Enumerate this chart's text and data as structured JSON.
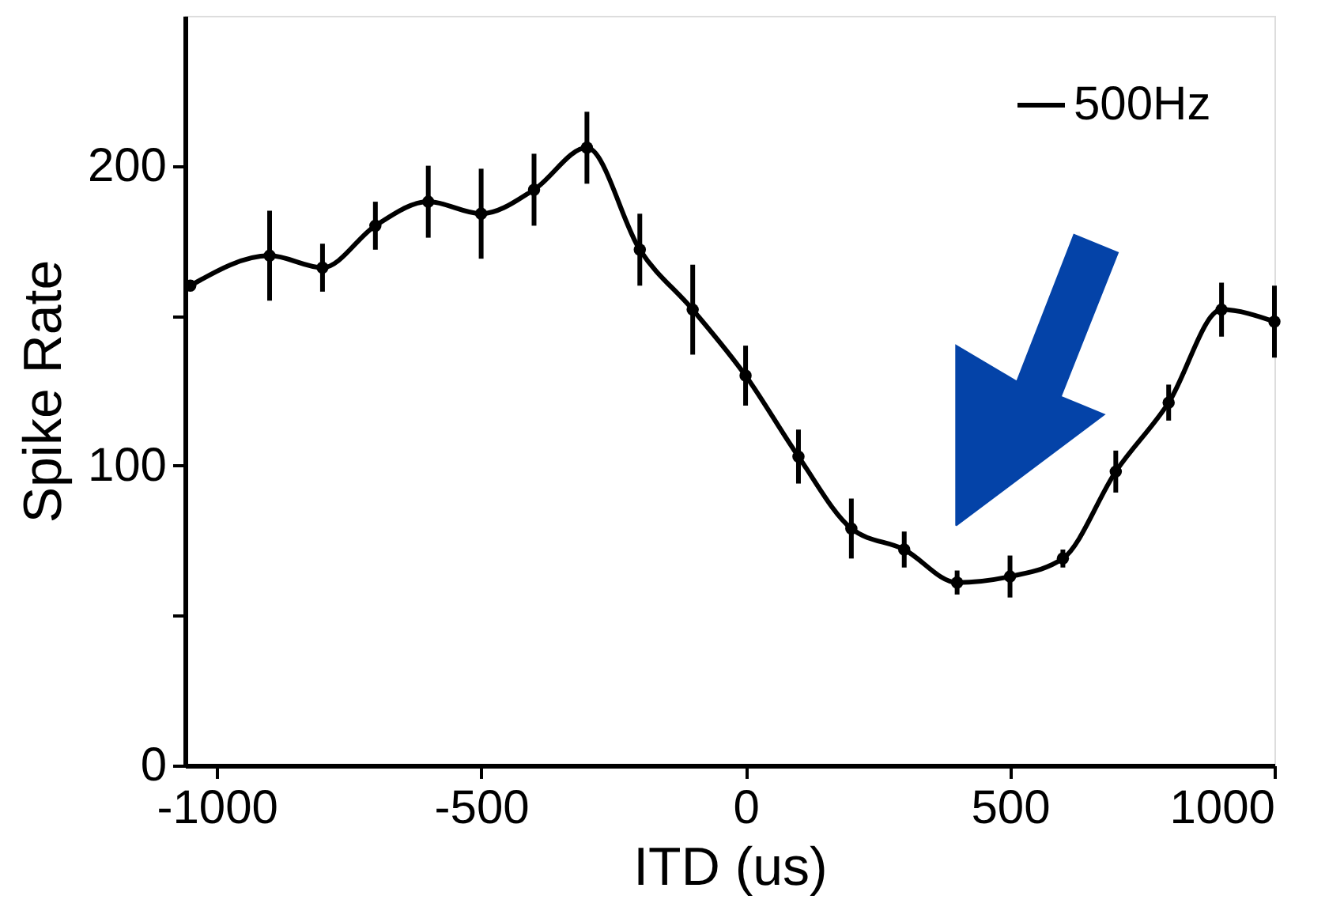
{
  "chart_data": {
    "type": "line",
    "xlabel": "ITD (us)",
    "ylabel": "Spike Rate",
    "x": [
      -1050,
      -900,
      -800,
      -700,
      -600,
      -500,
      -400,
      -300,
      -200,
      -100,
      0,
      100,
      200,
      300,
      400,
      500,
      600,
      700,
      800,
      900,
      1000
    ],
    "series": [
      {
        "name": "500Hz",
        "color": "#000000",
        "values": [
          160,
          170,
          166,
          180,
          188,
          184,
          192,
          206,
          172,
          152,
          130,
          103,
          79,
          72,
          61,
          63,
          69,
          98,
          121,
          152,
          148
        ],
        "errors": [
          null,
          15,
          8,
          8,
          12,
          15,
          12,
          12,
          12,
          15,
          10,
          9,
          10,
          6,
          4,
          7,
          3,
          7,
          6,
          9,
          12
        ]
      }
    ],
    "xlim": [
      -1060,
      1000
    ],
    "xticks": [
      -1000,
      -500,
      0,
      500,
      1000
    ],
    "ylim": [
      0,
      250
    ],
    "yticks": [
      0,
      {
        "value": 50,
        "label": null
      },
      100,
      {
        "value": 150,
        "label": null
      },
      200
    ],
    "marker": "circle",
    "line_style": "solid",
    "legend": "top right",
    "grid": false
  }
}
